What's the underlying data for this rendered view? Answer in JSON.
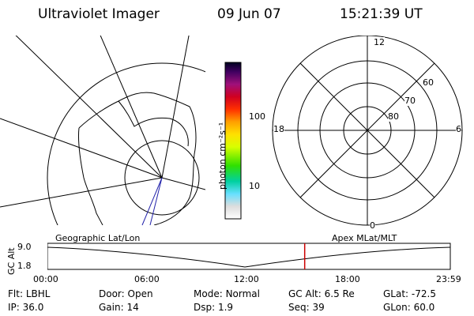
{
  "header": {
    "title": "Ultraviolet Imager",
    "date": "09 Jun 07",
    "time": "15:21:39 UT"
  },
  "colorbar": {
    "label": "photon cm⁻²s⁻¹",
    "ticks": [
      "100",
      "10"
    ]
  },
  "polar_plot": {
    "mlt_labels": [
      "12",
      "18",
      "6",
      "0"
    ],
    "lat_labels": [
      "60",
      "70",
      "80"
    ]
  },
  "left_map": {
    "left_label": "Geographic Lat/Lon"
  },
  "timeline": {
    "right_label": "Apex MLat/MLT",
    "ylabel": "GC Alt",
    "y_ticks": [
      "9.0",
      "1.8"
    ],
    "x_ticks": [
      "00:00",
      "06:00",
      "12:00",
      "18:00",
      "23:59"
    ],
    "current_marker_fraction": 0.6386
  },
  "info": {
    "row1": [
      {
        "label": "Flt:",
        "value": "LBHL"
      },
      {
        "label": "Door:",
        "value": "Open"
      },
      {
        "label": "Mode:",
        "value": "Normal"
      },
      {
        "label": "GC Alt:",
        "value": "6.5 Re"
      },
      {
        "label": "GLat:",
        "value": "-72.5"
      }
    ],
    "row2": [
      {
        "label": "IP:",
        "value": "36.0"
      },
      {
        "label": "Gain:",
        "value": "14"
      },
      {
        "label": "Dsp:",
        "value": "1.9"
      },
      {
        "label": "Seq:",
        "value": "39"
      },
      {
        "label": "GLon:",
        "value": "60.0"
      }
    ]
  },
  "colors": {
    "marker": "#cc0000",
    "trace": "#2222aa"
  }
}
